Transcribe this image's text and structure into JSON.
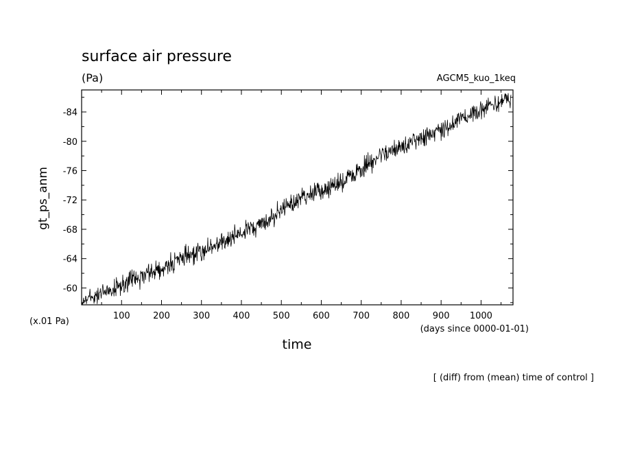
{
  "chart_data": {
    "type": "line",
    "title": "surface air pressure",
    "units": "(Pa)",
    "model_label": "AGCM5_kuo_1keq",
    "xlabel": "time",
    "ylabel": "gt_ps_anm",
    "x_unit_note": "(days since 0000-01-01)",
    "y_scale_note": "(x.01 Pa)",
    "caption": "[ (diff) from (mean) time of control ]",
    "xlim": [
      0,
      1080
    ],
    "ylim": [
      -57.7,
      -87.0
    ],
    "x_ticks": [
      100,
      200,
      300,
      400,
      500,
      600,
      700,
      800,
      900,
      1000
    ],
    "y_ticks": [
      -60,
      -64,
      -68,
      -72,
      -76,
      -80,
      -84
    ],
    "grid": false,
    "legend": "none",
    "series": [
      {
        "anchor_x": [
          0,
          50,
          100,
          150,
          200,
          250,
          300,
          350,
          400,
          450,
          500,
          550,
          600,
          650,
          700,
          750,
          800,
          850,
          900,
          950,
          1000,
          1050,
          1080
        ],
        "anchor_y": [
          -58.2,
          -59.3,
          -60.4,
          -61.6,
          -62.8,
          -63.9,
          -65.0,
          -66.2,
          -67.4,
          -68.8,
          -70.5,
          -72.3,
          -73.3,
          -74.3,
          -76.2,
          -78.2,
          -79.4,
          -80.6,
          -81.7,
          -83.0,
          -84.3,
          -85.3,
          -86.0
        ],
        "noise_amplitude": 1.0
      }
    ]
  }
}
